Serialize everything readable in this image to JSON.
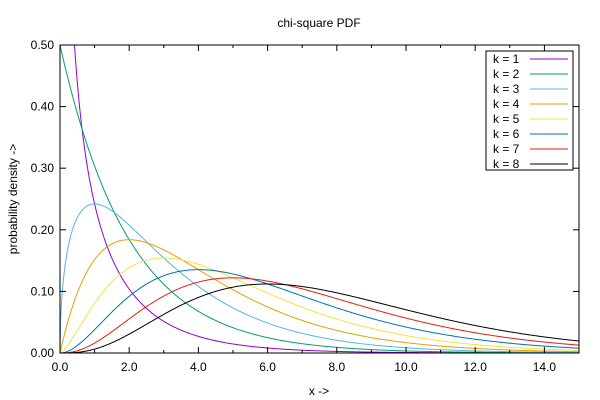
{
  "chart_data": {
    "type": "line",
    "title": "chi-square PDF",
    "xlabel": "x ->",
    "ylabel": "probability density ->",
    "xlim": [
      0,
      15
    ],
    "ylim": [
      0,
      0.5
    ],
    "xticks": [
      "0.0",
      "2.0",
      "4.0",
      "6.0",
      "8.0",
      "10.0",
      "12.0",
      "14.0"
    ],
    "yticks": [
      "0.00",
      "0.10",
      "0.20",
      "0.30",
      "0.40",
      "0.50"
    ],
    "grid": false,
    "legend_position": "top-right",
    "series": [
      {
        "name": "k = 1",
        "k": 1,
        "color": "#9400d3"
      },
      {
        "name": "k = 2",
        "k": 2,
        "color": "#009e73"
      },
      {
        "name": "k = 3",
        "k": 3,
        "color": "#56b4e9"
      },
      {
        "name": "k = 4",
        "k": 4,
        "color": "#e69f00"
      },
      {
        "name": "k = 5",
        "k": 5,
        "color": "#f0e442"
      },
      {
        "name": "k = 6",
        "k": 6,
        "color": "#0072b2"
      },
      {
        "name": "k = 7",
        "k": 7,
        "color": "#e51e10"
      },
      {
        "name": "k = 8",
        "k": 8,
        "color": "#000000"
      }
    ]
  }
}
